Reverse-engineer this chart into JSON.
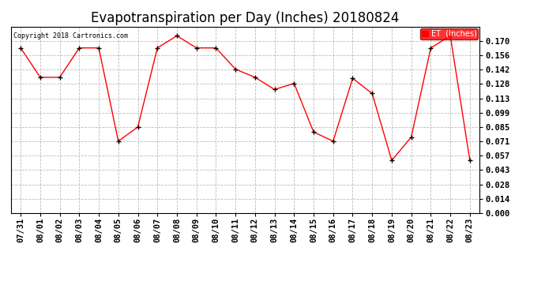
{
  "title": "Evapotranspiration per Day (Inches) 20180824",
  "copyright": "Copyright 2018 Cartronics.com",
  "legend_label": "ET  (Inches)",
  "dates": [
    "07/31",
    "08/01",
    "08/02",
    "08/03",
    "08/04",
    "08/05",
    "08/06",
    "08/07",
    "08/08",
    "08/09",
    "08/10",
    "08/11",
    "08/12",
    "08/13",
    "08/14",
    "08/15",
    "08/16",
    "08/17",
    "08/18",
    "08/19",
    "08/20",
    "08/21",
    "08/22",
    "08/23"
  ],
  "values": [
    0.163,
    0.134,
    0.134,
    0.163,
    0.163,
    0.071,
    0.085,
    0.163,
    0.175,
    0.163,
    0.163,
    0.142,
    0.134,
    0.122,
    0.128,
    0.08,
    0.071,
    0.133,
    0.118,
    0.052,
    0.075,
    0.163,
    0.175,
    0.052
  ],
  "ylim": [
    0.0,
    0.184
  ],
  "yticks": [
    0.0,
    0.014,
    0.028,
    0.043,
    0.057,
    0.071,
    0.085,
    0.099,
    0.113,
    0.128,
    0.142,
    0.156,
    0.17
  ],
  "line_color": "red",
  "marker_color": "black",
  "bg_color": "#ffffff",
  "grid_color": "#bbbbbb",
  "title_fontsize": 12,
  "tick_fontsize": 7.5
}
